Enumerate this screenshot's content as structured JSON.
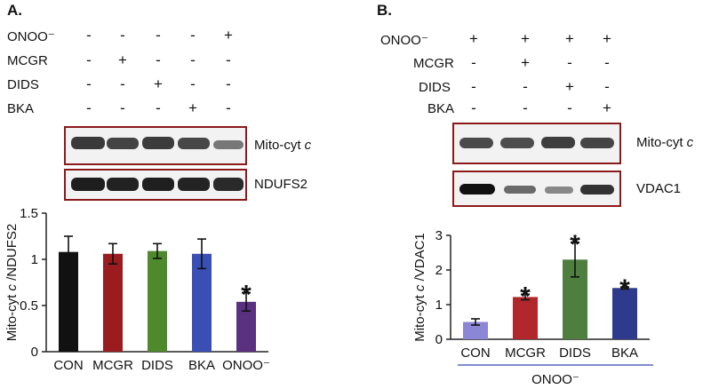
{
  "panel_a": {
    "label": "A.",
    "conditions": [
      {
        "name": "ONOO⁻",
        "signs": [
          "-",
          "-",
          "-",
          "-",
          "+"
        ]
      },
      {
        "name": "MCGR",
        "signs": [
          "-",
          "+",
          "-",
          "-",
          "-"
        ]
      },
      {
        "name": "DIDS",
        "signs": [
          "-",
          "-",
          "+",
          "-",
          "-"
        ]
      },
      {
        "name": "BKA",
        "signs": [
          "-",
          "-",
          "-",
          "+",
          "-"
        ]
      }
    ],
    "blots": [
      {
        "name": "Mito-cyt c"
      },
      {
        "name": "NDUFS2"
      }
    ]
  },
  "panel_b": {
    "label": "B.",
    "conditions": [
      {
        "name": "ONOO⁻",
        "signs": [
          "+",
          "+",
          "+",
          "+"
        ]
      },
      {
        "name": "MCGR",
        "signs": [
          "-",
          "+",
          "-",
          "-"
        ]
      },
      {
        "name": "DIDS",
        "signs": [
          "-",
          "-",
          "+",
          "-"
        ]
      },
      {
        "name": "BKA",
        "signs": [
          "-",
          "-",
          "-",
          "+"
        ]
      }
    ],
    "blots": [
      {
        "name": "Mito-cyt c"
      },
      {
        "name": "VDAC1"
      }
    ],
    "group_label": "ONOO⁻"
  },
  "chart_data": [
    {
      "type": "bar",
      "categories": [
        "CON",
        "MCGR",
        "DIDS",
        "BKA",
        "ONOO⁻"
      ],
      "values": [
        1.08,
        1.06,
        1.09,
        1.06,
        0.54
      ],
      "errors": [
        0.17,
        0.11,
        0.08,
        0.16,
        0.1
      ],
      "significant": [
        false,
        false,
        false,
        false,
        true
      ],
      "significance_marker": "*",
      "colors": [
        "#111111",
        "#9b1c1f",
        "#4e8a2c",
        "#3a4fb5",
        "#5a3080"
      ],
      "xlabel": "",
      "ylabel": "Mito-cyt c /NDUFS2",
      "ylim": [
        0,
        1.5
      ],
      "yticks": [
        "0",
        "0.5",
        "1",
        "1.5"
      ]
    },
    {
      "type": "bar",
      "categories": [
        "CON",
        "MCGR",
        "DIDS",
        "BKA"
      ],
      "values": [
        0.5,
        1.22,
        2.3,
        1.48
      ],
      "errors": [
        0.09,
        0.08,
        0.5,
        0.03
      ],
      "significant": [
        false,
        true,
        true,
        true
      ],
      "significance_marker": "*",
      "colors": [
        "#8c86d6",
        "#b2272b",
        "#4f7f3e",
        "#2e3a8c"
      ],
      "xlabel": "",
      "ylabel": "Mito-cyt c /VDAC1",
      "ylim": [
        0,
        3
      ],
      "yticks": [
        "0",
        "1",
        "2",
        "3"
      ]
    }
  ]
}
